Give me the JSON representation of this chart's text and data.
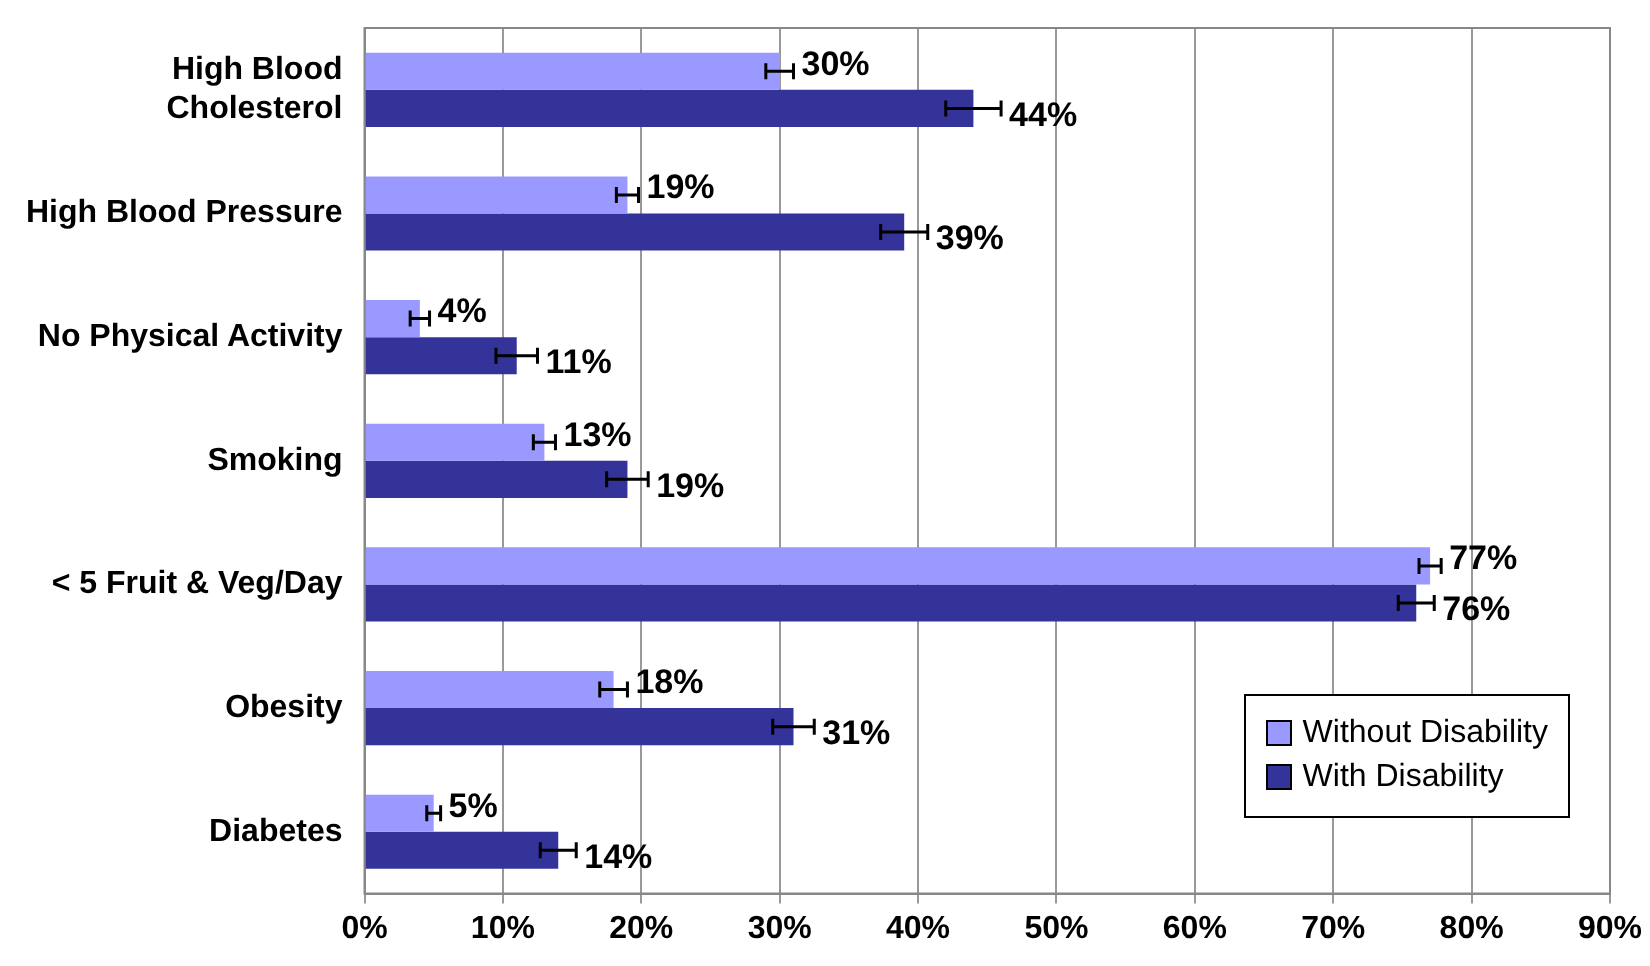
{
  "chart_data": {
    "type": "bar",
    "orientation": "horizontal",
    "categories": [
      "High Blood Cholesterol",
      "High Blood Pressure",
      "No Physical Activity",
      "Smoking",
      "< 5 Fruit & Veg/Day",
      "Obesity",
      "Diabetes"
    ],
    "series": [
      {
        "name": "Without Disability",
        "color": "#9999ff",
        "values": [
          30,
          19,
          4,
          13,
          77,
          18,
          5
        ],
        "errors": [
          1,
          0.8,
          0.7,
          0.8,
          0.8,
          1,
          0.5
        ],
        "value_labels": [
          "30%",
          "19%",
          "4%",
          "13%",
          "77%",
          "18%",
          "5%"
        ]
      },
      {
        "name": "With Disability",
        "color": "#333399",
        "values": [
          44,
          39,
          11,
          19,
          76,
          31,
          14
        ],
        "errors": [
          2,
          1.7,
          1.5,
          1.5,
          1.3,
          1.5,
          1.3
        ],
        "value_labels": [
          "44%",
          "39%",
          "11%",
          "19%",
          "76%",
          "31%",
          "14%"
        ]
      }
    ],
    "xlim": [
      0,
      90
    ],
    "xticks": [
      {
        "value": 0,
        "label": "0%"
      },
      {
        "value": 10,
        "label": "10%"
      },
      {
        "value": 20,
        "label": "20%"
      },
      {
        "value": 30,
        "label": "30%"
      },
      {
        "value": 40,
        "label": "40%"
      },
      {
        "value": 50,
        "label": "50%"
      },
      {
        "value": 60,
        "label": "60%"
      },
      {
        "value": 70,
        "label": "70%"
      },
      {
        "value": 80,
        "label": "80%"
      },
      {
        "value": 90,
        "label": "90%"
      }
    ],
    "grid": "x",
    "legend": "bottom right"
  }
}
